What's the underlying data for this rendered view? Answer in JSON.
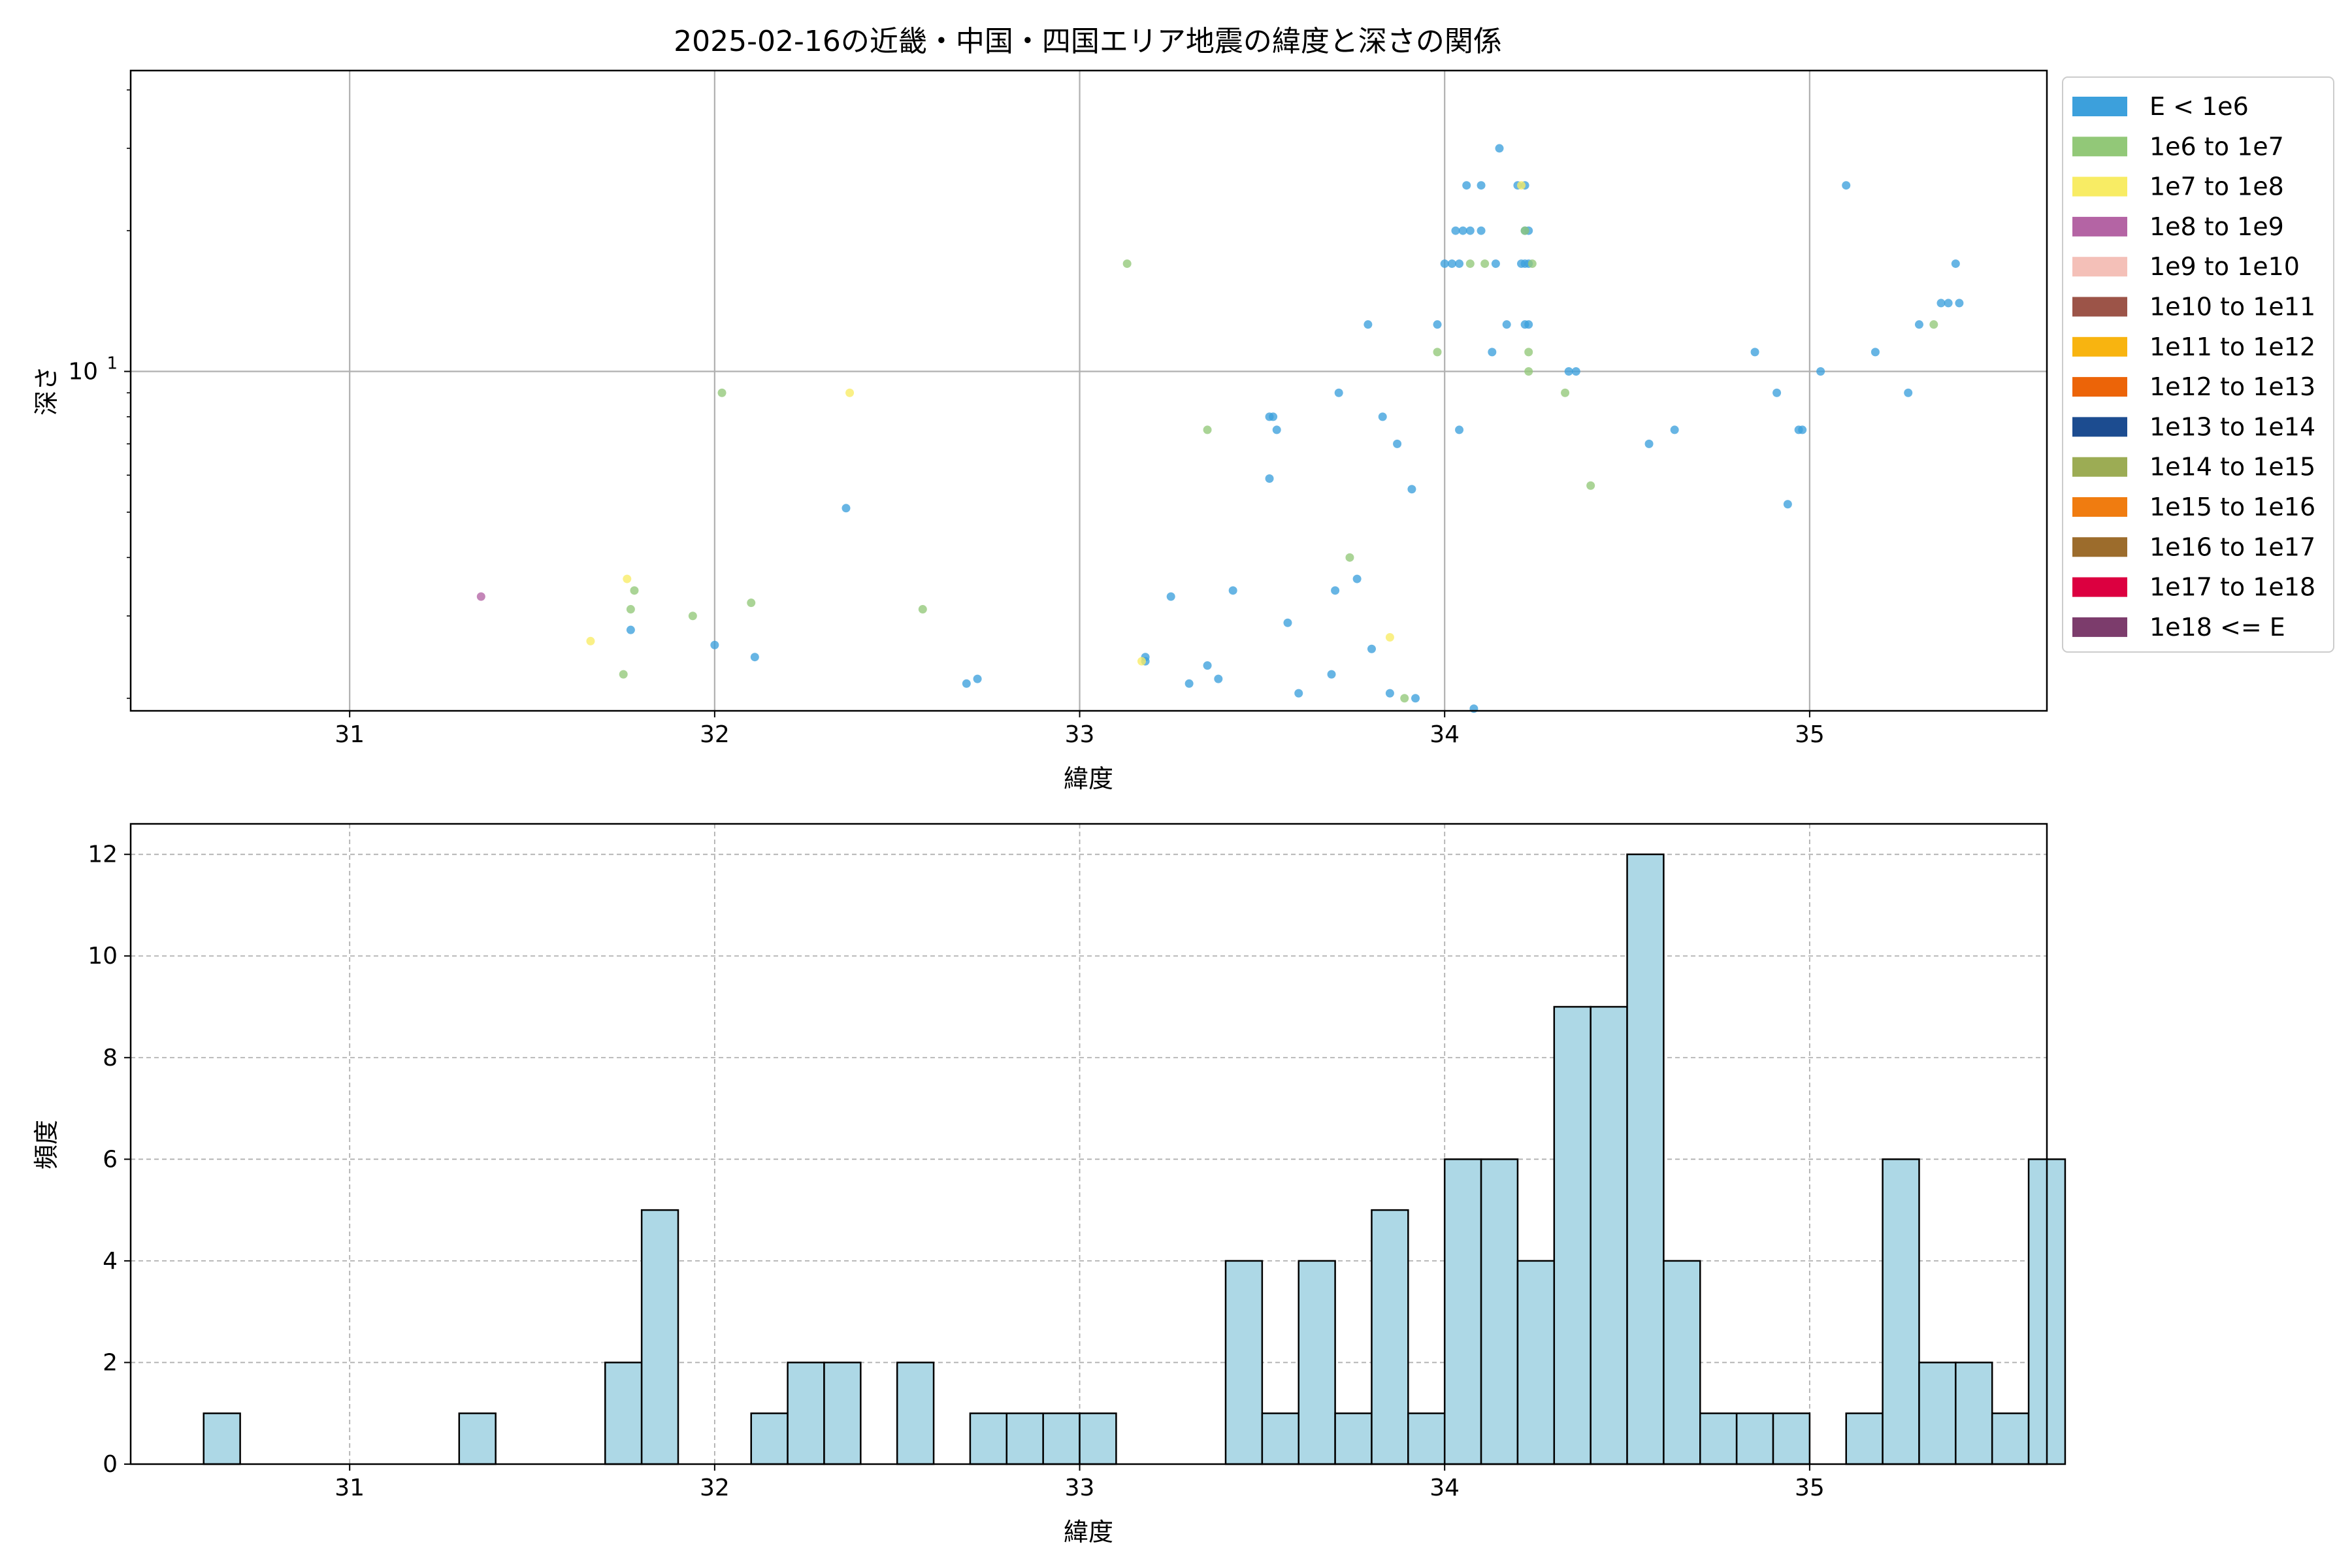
{
  "chart_data": [
    {
      "type": "scatter",
      "title": "2025-02-16の近畿・中国・四国エリア地震の緯度と深さの関係",
      "xlabel": "緯度",
      "ylabel": "深さ",
      "yscale": "log",
      "xlim": [
        30.4,
        35.65
      ],
      "ylim": [
        1.88,
        44
      ],
      "xticks": [
        31,
        32,
        33,
        34,
        35
      ],
      "yticks": [
        {
          "value": 10,
          "base": "10",
          "exp": "1"
        }
      ],
      "grid": true,
      "legend_placement": "outside-right",
      "legend": [
        {
          "label": "E < 1e6",
          "color": "#3ca0dc"
        },
        {
          "label": "1e6 to 1e7",
          "color": "#92c878"
        },
        {
          "label": "1e7 to 1e8",
          "color": "#f8ec64"
        },
        {
          "label": "1e8 to 1e9",
          "color": "#b464a4"
        },
        {
          "label": "1e9 to 1e10",
          "color": "#f4c0b8"
        },
        {
          "label": "1e10 to 1e11",
          "color": "#9c5448"
        },
        {
          "label": "1e11 to 1e12",
          "color": "#f8b410"
        },
        {
          "label": "1e12 to 1e13",
          "color": "#ec6408"
        },
        {
          "label": "1e13 to 1e14",
          "color": "#1c4c90"
        },
        {
          "label": "1e14 to 1e15",
          "color": "#9cac54"
        },
        {
          "label": "1e15 to 1e16",
          "color": "#f07c10"
        },
        {
          "label": "1e16 to 1e17",
          "color": "#9c6c2c"
        },
        {
          "label": "1e17 to 1e18",
          "color": "#dc0040"
        },
        {
          "label": "1e18 <= E",
          "color": "#7c3c6c"
        }
      ],
      "series": [
        {
          "color": "#3ca0dc",
          "points": [
            [
              31.77,
              2.8
            ],
            [
              32.0,
              2.6
            ],
            [
              32.11,
              2.45
            ],
            [
              32.36,
              5.1
            ],
            [
              32.69,
              2.15
            ],
            [
              32.72,
              2.2
            ],
            [
              33.18,
              2.4
            ],
            [
              33.18,
              2.45
            ],
            [
              33.25,
              3.3
            ],
            [
              33.3,
              2.15
            ],
            [
              33.35,
              2.35
            ],
            [
              33.38,
              2.2
            ],
            [
              33.42,
              3.4
            ],
            [
              33.52,
              5.9
            ],
            [
              33.52,
              8.0
            ],
            [
              33.53,
              8.0
            ],
            [
              33.54,
              7.5
            ],
            [
              33.57,
              2.9
            ],
            [
              33.6,
              2.05
            ],
            [
              33.69,
              2.25
            ],
            [
              33.7,
              3.4
            ],
            [
              33.71,
              9.0
            ],
            [
              33.76,
              3.6
            ],
            [
              33.79,
              12.6
            ],
            [
              33.8,
              2.55
            ],
            [
              33.83,
              8.0
            ],
            [
              33.85,
              2.05
            ],
            [
              33.87,
              7.0
            ],
            [
              33.91,
              5.6
            ],
            [
              33.92,
              2.0
            ],
            [
              33.98,
              12.6
            ],
            [
              34.0,
              17.0
            ],
            [
              34.02,
              17.0
            ],
            [
              34.03,
              20.0
            ],
            [
              34.04,
              7.5
            ],
            [
              34.04,
              17.0
            ],
            [
              34.05,
              20.0
            ],
            [
              34.06,
              25.0
            ],
            [
              34.07,
              20.0
            ],
            [
              34.08,
              1.9
            ],
            [
              34.1,
              20.0
            ],
            [
              34.1,
              25.0
            ],
            [
              34.13,
              11.0
            ],
            [
              34.14,
              17.0
            ],
            [
              34.15,
              30.0
            ],
            [
              34.17,
              12.6
            ],
            [
              34.2,
              25.0
            ],
            [
              34.21,
              17.0
            ],
            [
              34.22,
              12.6
            ],
            [
              34.22,
              20.0
            ],
            [
              34.22,
              17.0
            ],
            [
              34.22,
              25.0
            ],
            [
              34.23,
              12.6
            ],
            [
              34.23,
              20.0
            ],
            [
              34.23,
              17.0
            ],
            [
              34.36,
              10.0
            ],
            [
              34.34,
              10.0
            ],
            [
              34.56,
              7.0
            ],
            [
              34.63,
              7.5
            ],
            [
              34.85,
              11.0
            ],
            [
              34.91,
              9.0
            ],
            [
              34.94,
              5.2
            ],
            [
              34.97,
              7.5
            ],
            [
              34.98,
              7.5
            ],
            [
              35.03,
              10.0
            ],
            [
              35.1,
              25.0
            ],
            [
              35.18,
              11.0
            ],
            [
              35.27,
              9.0
            ],
            [
              35.3,
              12.6
            ],
            [
              35.36,
              14.0
            ],
            [
              35.38,
              14.0
            ],
            [
              35.4,
              17.0
            ],
            [
              35.41,
              14.0
            ]
          ]
        },
        {
          "color": "#92c878",
          "points": [
            [
              31.75,
              2.25
            ],
            [
              31.77,
              3.1
            ],
            [
              31.78,
              3.4
            ],
            [
              31.94,
              3.0
            ],
            [
              32.02,
              9.0
            ],
            [
              32.1,
              3.2
            ],
            [
              32.57,
              3.1
            ],
            [
              33.13,
              17.0
            ],
            [
              33.35,
              7.5
            ],
            [
              33.74,
              4.0
            ],
            [
              33.89,
              2.0
            ],
            [
              33.98,
              11.0
            ],
            [
              34.07,
              17.0
            ],
            [
              34.11,
              17.0
            ],
            [
              34.22,
              20.0
            ],
            [
              34.23,
              11.0
            ],
            [
              34.24,
              17.0
            ],
            [
              34.33,
              9.0
            ],
            [
              34.23,
              10.0
            ],
            [
              34.4,
              5.7
            ],
            [
              35.34,
              12.6
            ]
          ]
        },
        {
          "color": "#f8ec64",
          "points": [
            [
              31.66,
              2.65
            ],
            [
              31.76,
              3.6
            ],
            [
              32.37,
              9.0
            ],
            [
              33.17,
              2.4
            ],
            [
              33.85,
              2.7
            ],
            [
              34.21,
              25.0
            ]
          ]
        },
        {
          "color": "#b464a4",
          "points": [
            [
              31.36,
              3.3
            ]
          ]
        }
      ]
    },
    {
      "type": "bar",
      "title": "",
      "xlabel": "緯度",
      "ylabel": "頻度",
      "xlim": [
        30.4,
        35.65
      ],
      "ylim": [
        0,
        12.6
      ],
      "xticks": [
        31,
        32,
        33,
        34,
        35
      ],
      "yticks": [
        0,
        2,
        4,
        6,
        8,
        10,
        12
      ],
      "grid": true,
      "bar_color": "#add8e6",
      "edge_color": "#000000",
      "bin_start": 30.6,
      "bin_width": 0.1,
      "values": [
        1,
        0,
        0,
        0,
        0,
        0,
        0,
        1,
        0,
        0,
        0,
        2,
        5,
        0,
        0,
        1,
        2,
        2,
        0,
        2,
        0,
        1,
        1,
        1,
        1,
        0,
        0,
        0,
        4,
        1,
        4,
        1,
        5,
        1,
        6,
        6,
        4,
        9,
        9,
        12,
        4,
        1,
        1,
        1,
        0,
        1,
        6,
        2,
        2,
        1,
        6
      ]
    }
  ]
}
